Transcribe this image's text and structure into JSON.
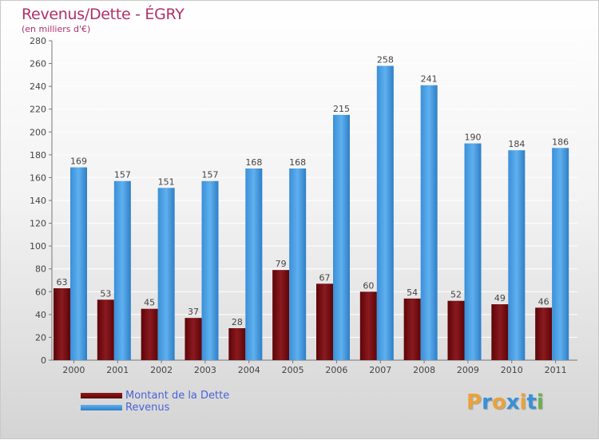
{
  "chart_data": {
    "type": "bar",
    "title": "Revenus/Dette - ÉGRY",
    "subtitle": "(en milliers d'€)",
    "categories": [
      "2000",
      "2001",
      "2002",
      "2003",
      "2004",
      "2005",
      "2006",
      "2007",
      "2008",
      "2009",
      "2010",
      "2011"
    ],
    "series": [
      {
        "name": "Montant de la Dette",
        "color": "#7a0f14",
        "values": [
          63,
          53,
          45,
          37,
          28,
          79,
          67,
          60,
          54,
          52,
          49,
          46
        ]
      },
      {
        "name": "Revenus",
        "color": "#4a9fe3",
        "values": [
          169,
          157,
          151,
          157,
          168,
          168,
          215,
          258,
          241,
          190,
          184,
          186
        ]
      }
    ],
    "ylim": [
      0,
      280
    ],
    "yticks": [
      0,
      20,
      40,
      60,
      80,
      100,
      120,
      140,
      160,
      180,
      200,
      220,
      240,
      260,
      280
    ],
    "grid": true,
    "legend_position": "bottom-left"
  },
  "branding": {
    "logo_letters": [
      "P",
      "r",
      "o",
      "x",
      "i",
      "t",
      "i"
    ],
    "logo_colors": [
      "#e8a33a",
      "#3a8fd8",
      "#e8a33a",
      "#3a8fd8",
      "#e8a33a",
      "#3a8fd8",
      "#6ab04c"
    ]
  }
}
